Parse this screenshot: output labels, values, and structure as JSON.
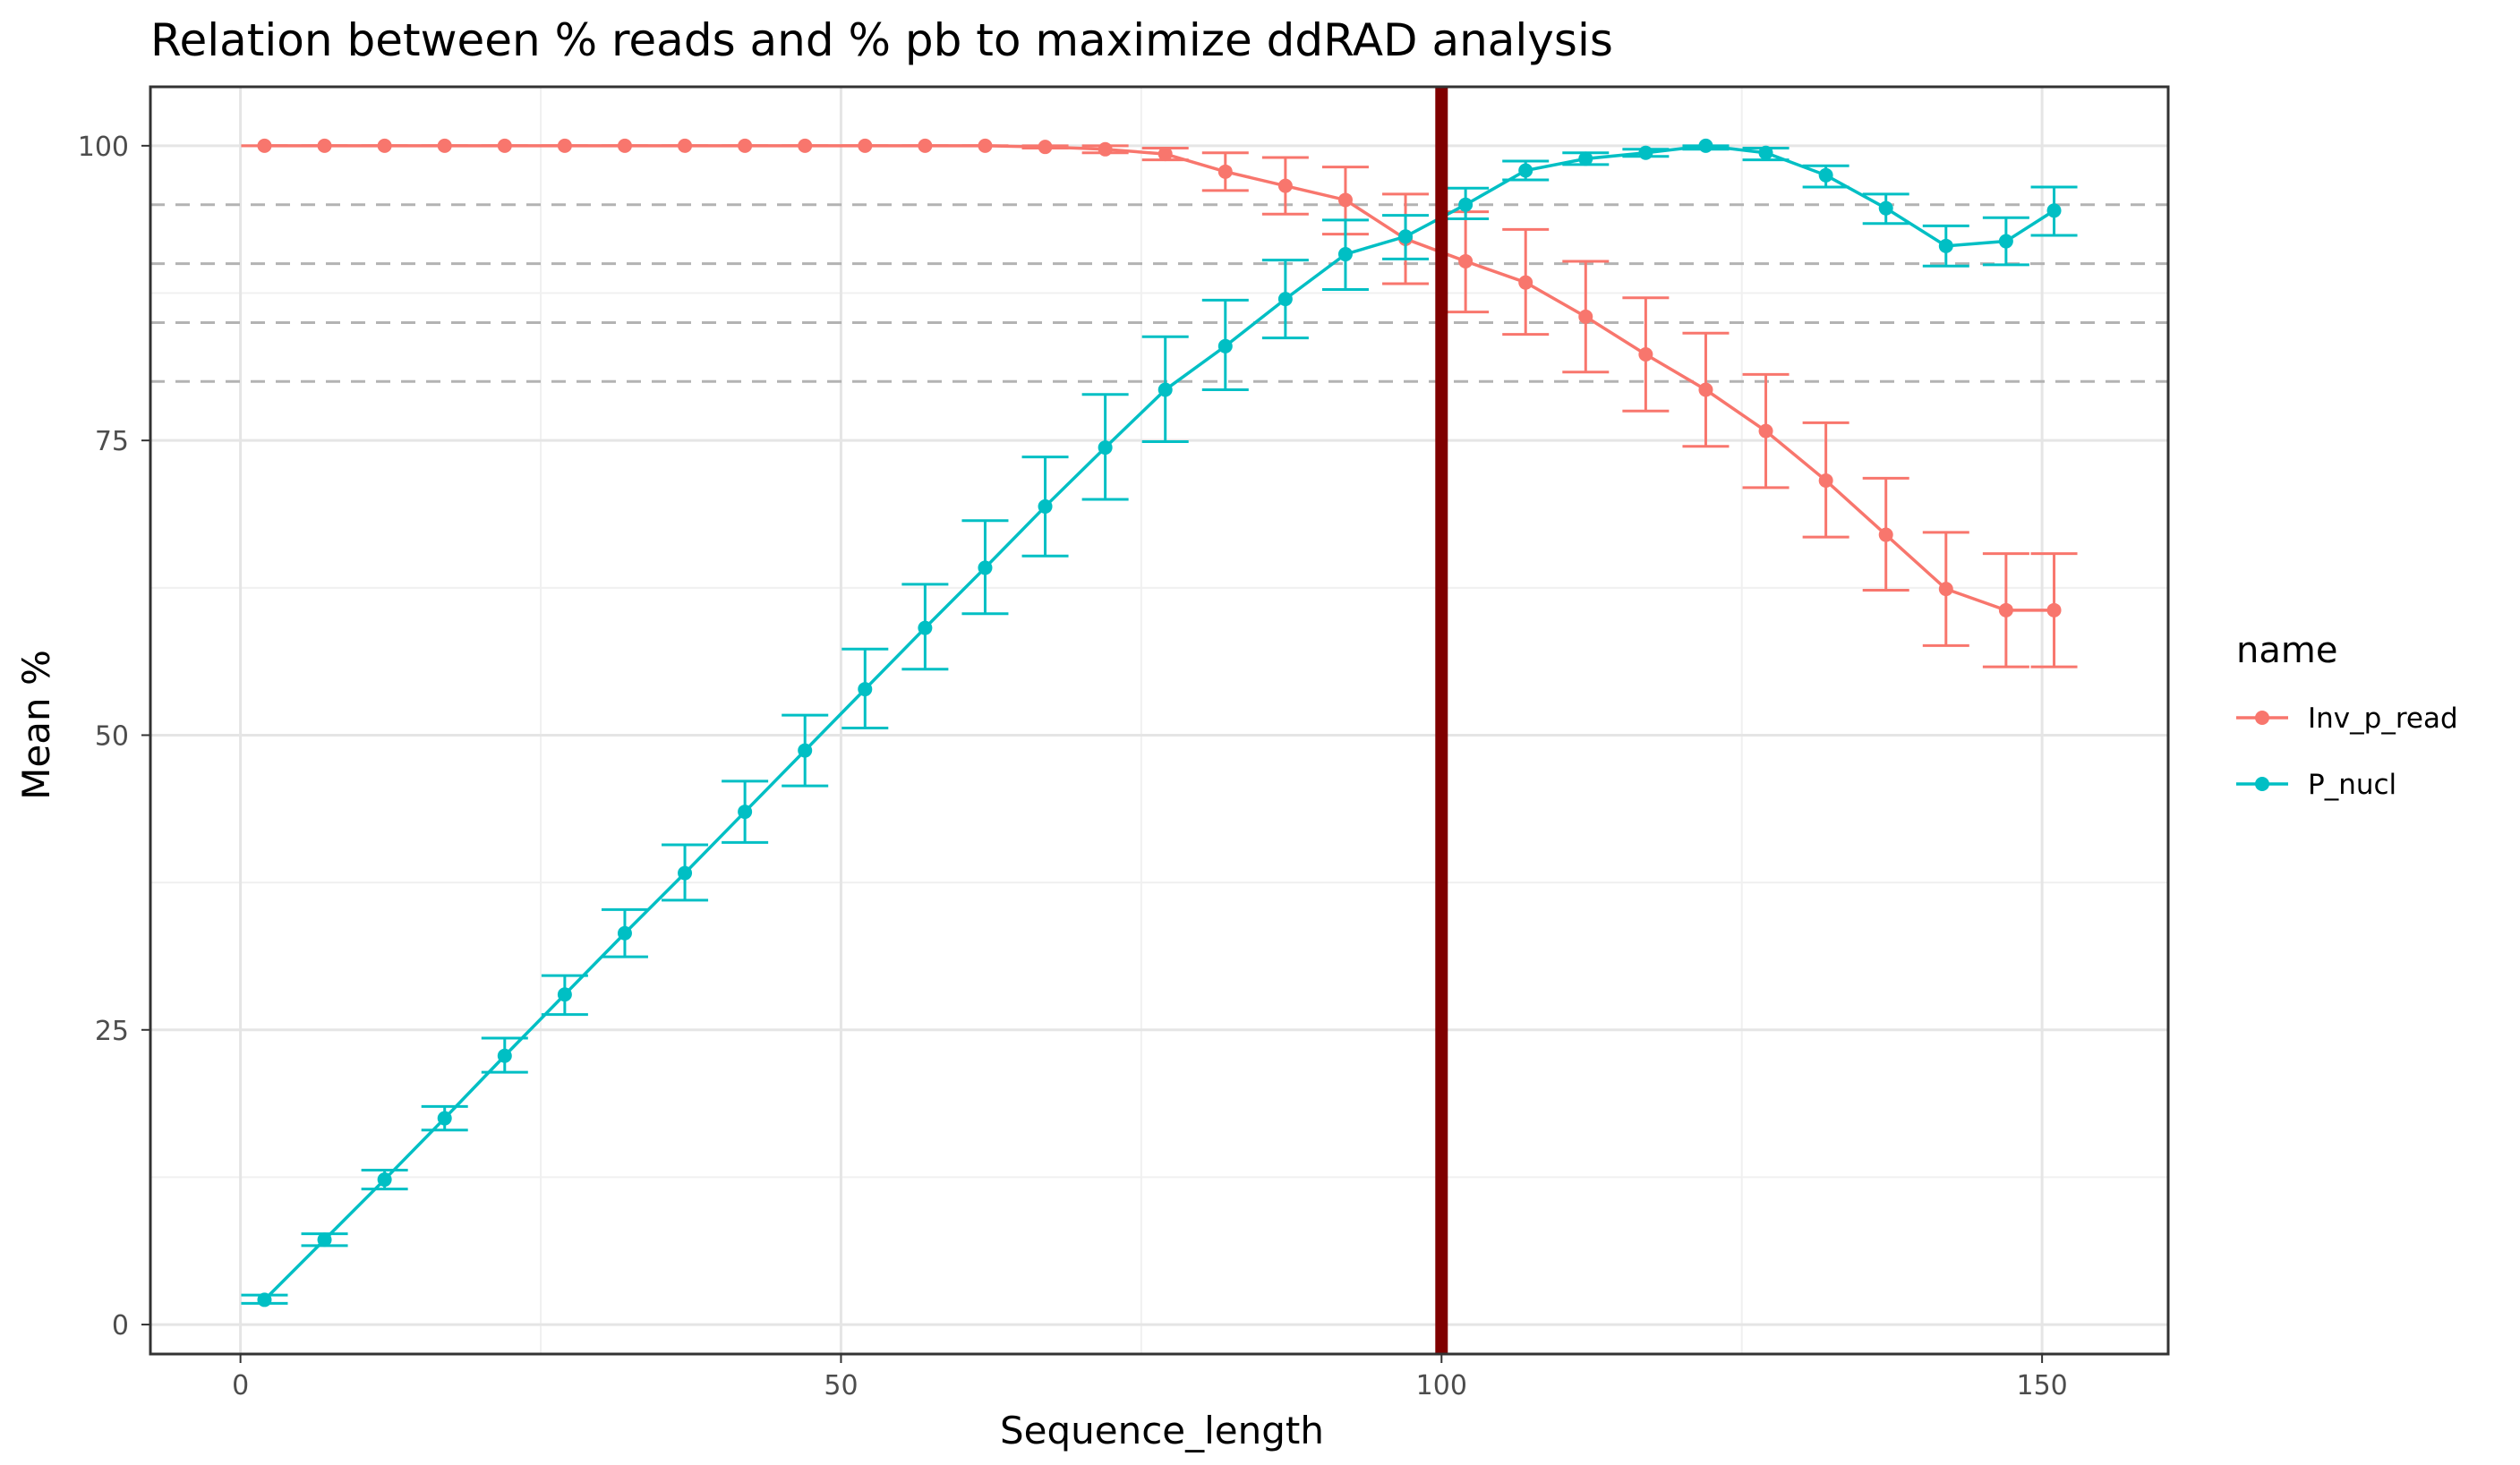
{
  "chart_data": {
    "type": "line",
    "title": "Relation between % reads and % pb to maximize ddRAD analysis",
    "xlabel": "Sequence_length",
    "ylabel": "Mean %",
    "xlim": [
      -7.5,
      160.5
    ],
    "ylim": [
      -2.5,
      105
    ],
    "x_ticks": [
      0,
      50,
      100,
      150
    ],
    "y_ticks": [
      0,
      25,
      50,
      75,
      100
    ],
    "grid": true,
    "vertical_line": {
      "x": 100,
      "color": "#800000"
    },
    "horizontal_dashed_lines": [
      80,
      85,
      90,
      95
    ],
    "legend": {
      "title": "name",
      "position": "right"
    },
    "x": [
      2,
      7,
      12,
      17,
      22,
      27,
      32,
      37,
      42,
      47,
      52,
      57,
      62,
      67,
      72,
      77,
      82,
      87,
      92,
      97,
      102,
      107,
      112,
      117,
      122,
      127,
      132,
      137,
      142,
      147,
      151
    ],
    "series": [
      {
        "name": "Inv_p_read",
        "color": "#F8766D",
        "values": [
          100,
          100,
          100,
          100,
          100,
          100,
          100,
          100,
          100,
          100,
          100,
          100,
          100,
          99.9,
          99.7,
          99.3,
          97.8,
          96.6,
          95.4,
          92.1,
          90.2,
          88.4,
          85.5,
          82.3,
          79.3,
          75.8,
          71.6,
          67.0,
          62.4,
          60.6,
          60.6
        ],
        "err_low": [
          100,
          100,
          100,
          100,
          100,
          100,
          100,
          100,
          100,
          100,
          100,
          100,
          100,
          99.8,
          99.4,
          98.8,
          96.2,
          94.2,
          92.5,
          88.3,
          85.9,
          84.0,
          80.8,
          77.5,
          74.5,
          71.0,
          66.8,
          62.3,
          57.6,
          55.8,
          55.8
        ],
        "err_high": [
          100,
          100,
          100,
          100,
          100,
          100,
          100,
          100,
          100,
          100,
          100,
          100,
          100,
          100,
          100,
          99.8,
          99.4,
          99.0,
          98.2,
          95.9,
          94.4,
          92.9,
          90.2,
          87.1,
          84.1,
          80.6,
          76.5,
          71.8,
          67.2,
          65.4,
          65.4
        ]
      },
      {
        "name": "P_nucl",
        "color": "#00BFC4",
        "values": [
          2.1,
          7.2,
          12.3,
          17.5,
          22.8,
          28.0,
          33.2,
          38.3,
          43.5,
          48.7,
          53.9,
          59.1,
          64.2,
          69.4,
          74.4,
          79.3,
          83.0,
          87.0,
          90.8,
          92.3,
          95.0,
          97.9,
          98.9,
          99.4,
          100,
          99.4,
          97.5,
          94.7,
          91.5,
          91.9,
          94.5
        ],
        "err_low": [
          1.8,
          6.7,
          11.5,
          16.5,
          21.4,
          26.3,
          31.2,
          36.0,
          40.9,
          45.7,
          50.6,
          55.6,
          60.3,
          65.2,
          70.0,
          74.9,
          79.3,
          83.7,
          87.8,
          90.4,
          93.8,
          97.1,
          98.4,
          99.1,
          99.7,
          98.8,
          96.5,
          93.4,
          89.8,
          89.9,
          92.4
        ],
        "err_high": [
          2.5,
          7.7,
          13.1,
          18.5,
          24.3,
          29.6,
          35.2,
          40.7,
          46.1,
          51.7,
          57.3,
          62.8,
          68.2,
          73.6,
          78.9,
          83.8,
          86.9,
          90.3,
          93.7,
          94.1,
          96.4,
          98.7,
          99.4,
          99.7,
          100,
          99.8,
          98.3,
          95.9,
          93.2,
          93.9,
          96.5
        ]
      }
    ]
  }
}
